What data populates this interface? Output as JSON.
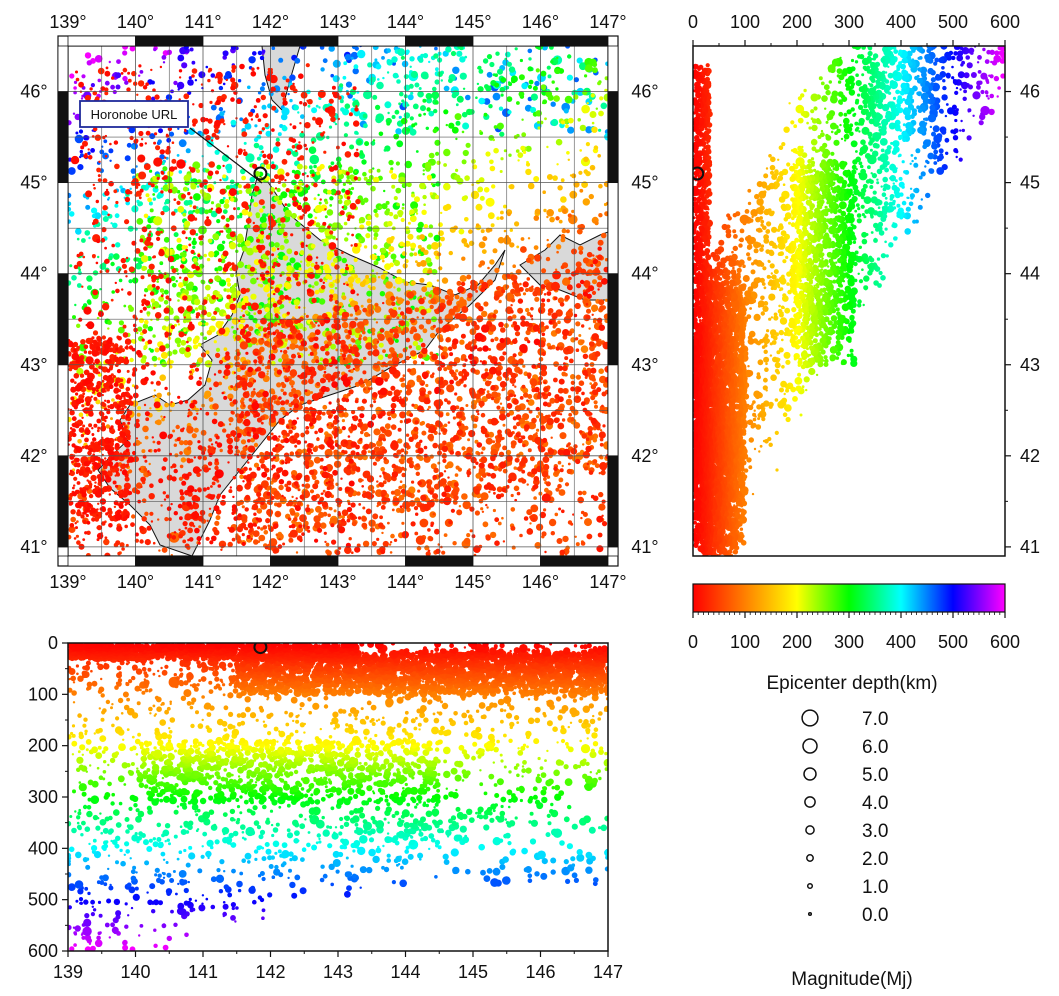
{
  "map": {
    "lon_ticks": [
      "139°",
      "140°",
      "141°",
      "142°",
      "143°",
      "144°",
      "145°",
      "146°",
      "147°"
    ],
    "lat_ticks": [
      "41°",
      "42°",
      "43°",
      "44°",
      "45°",
      "46°"
    ],
    "lon_range": [
      139,
      147
    ],
    "lat_range": [
      40.9,
      46.5
    ],
    "site_label": "Horonobe URL",
    "site_location": {
      "lon": 141.85,
      "lat": 45.1
    },
    "land_color": "#d9d9d9"
  },
  "depth_vs_lat": {
    "depth_ticks": [
      "0",
      "100",
      "200",
      "300",
      "400",
      "500",
      "600"
    ],
    "lat_ticks": [
      "41",
      "42",
      "43",
      "44",
      "45",
      "46"
    ],
    "depth_range": [
      0,
      600
    ],
    "lat_range": [
      40.9,
      46.5
    ]
  },
  "lon_vs_depth": {
    "lon_ticks": [
      "139",
      "140",
      "141",
      "142",
      "143",
      "144",
      "145",
      "146",
      "147"
    ],
    "depth_ticks": [
      "0",
      "100",
      "200",
      "300",
      "400",
      "500",
      "600"
    ],
    "lon_range": [
      139,
      147
    ],
    "depth_range": [
      0,
      600
    ]
  },
  "colorbar": {
    "ticks": [
      "0",
      "100",
      "200",
      "300",
      "400",
      "500",
      "600"
    ],
    "label": "Epicenter depth(km)",
    "range": [
      0,
      600
    ],
    "stops": [
      "#ff0000",
      "#ff8000",
      "#ffff00",
      "#00ff00",
      "#00ffff",
      "#0000ff",
      "#ff00ff"
    ]
  },
  "magnitude_legend": {
    "label": "Magnitude(Mj)",
    "items": [
      {
        "value": "7.0",
        "mag": 7
      },
      {
        "value": "6.0",
        "mag": 6
      },
      {
        "value": "5.0",
        "mag": 5
      },
      {
        "value": "4.0",
        "mag": 4
      },
      {
        "value": "3.0",
        "mag": 3
      },
      {
        "value": "2.0",
        "mag": 2
      },
      {
        "value": "1.0",
        "mag": 1
      },
      {
        "value": "0.0",
        "mag": 0
      }
    ]
  }
}
